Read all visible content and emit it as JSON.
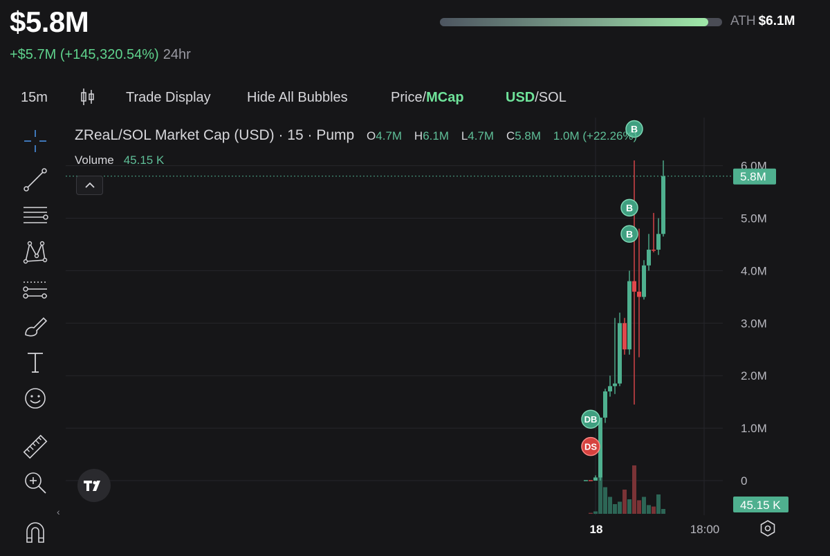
{
  "header": {
    "market_cap": "$5.8M",
    "change": "+$5.7M (+145,320.54%)",
    "change_period": "24hr",
    "ath_label": "ATH",
    "ath_value": "$6.1M",
    "ath_progress": 0.95,
    "colors": {
      "positive": "#5fd38d",
      "ath_fill": "#9fe8a8"
    }
  },
  "toolbar": {
    "interval": "15m",
    "candle_icon": "candlestick-icon",
    "trade_display": "Trade Display",
    "hide_bubbles": "Hide All Bubbles",
    "price_label": "Price/",
    "mcap_label": "MCap",
    "usd_label": "USD",
    "sol_label": "/SOL"
  },
  "sidebar": {
    "tools": [
      "crosshair-icon",
      "trendline-icon",
      "fib-lines-icon",
      "pattern-icon",
      "forecast-icon",
      "brush-icon",
      "text-icon",
      "emoji-icon",
      "ruler-icon",
      "zoom-in-icon",
      "magnet-icon"
    ]
  },
  "legend": {
    "symbol": "ZReaL/SOL Market Cap (USD) · 15 · Pump",
    "o_label": "O",
    "o": "4.7M",
    "h_label": "H",
    "h": "6.1M",
    "l_label": "L",
    "l": "4.7M",
    "c_label": "C",
    "c": "5.8M",
    "change": "1.0M (+22.26%)",
    "volume_label": "Volume",
    "volume": "45.15 K"
  },
  "chart_data": {
    "type": "candlestick",
    "title": "ZReaL/SOL Market Cap (USD) · 15 · Pump",
    "y_unit": "USD market cap",
    "ylim": [
      0,
      6400000
    ],
    "y_ticks": [
      "6.0M",
      "5.0M",
      "4.0M",
      "3.0M",
      "2.0M",
      "1.0M",
      "0"
    ],
    "y_tick_values": [
      6000000,
      5000000,
      4000000,
      3000000,
      2000000,
      1000000,
      0
    ],
    "x_ticks": [
      "18",
      "18:00"
    ],
    "current_value": 5800000,
    "current_label": "5.8M",
    "volume_label": "45.15 K",
    "colors": {
      "up": "#4fb08f",
      "down": "#e0484c",
      "up_vol": "#2d6656",
      "down_vol": "#7a3336"
    },
    "candles": [
      {
        "o": 0,
        "h": 0,
        "l": 0,
        "c": 0,
        "v": 0.0,
        "up": true
      },
      {
        "o": 0,
        "h": 0,
        "l": 0,
        "c": 0,
        "v": 0.02,
        "up": false
      },
      {
        "o": 0,
        "h": 100000,
        "l": 0,
        "c": 60000,
        "v": 0.05,
        "up": true
      },
      {
        "o": 60000,
        "h": 1200000,
        "l": 0,
        "c": 1200000,
        "v": 1.0,
        "up": true
      },
      {
        "o": 1200000,
        "h": 1750000,
        "l": 1100000,
        "c": 1700000,
        "v": 0.55,
        "up": true
      },
      {
        "o": 1700000,
        "h": 2000000,
        "l": 1600000,
        "c": 1800000,
        "v": 0.35,
        "up": true
      },
      {
        "o": 1800000,
        "h": 3100000,
        "l": 1650000,
        "c": 1850000,
        "v": 0.2,
        "up": true
      },
      {
        "o": 1850000,
        "h": 3200000,
        "l": 1800000,
        "c": 3000000,
        "v": 0.25,
        "up": true
      },
      {
        "o": 3000000,
        "h": 3100000,
        "l": 2400000,
        "c": 2500000,
        "v": 0.5,
        "up": false
      },
      {
        "o": 2500000,
        "h": 4000000,
        "l": 2400000,
        "c": 3800000,
        "v": 0.3,
        "up": true
      },
      {
        "o": 3800000,
        "h": 6100000,
        "l": 1450000,
        "c": 3600000,
        "v": 1.0,
        "up": false
      },
      {
        "o": 3600000,
        "h": 4800000,
        "l": 2350000,
        "c": 3500000,
        "v": 0.28,
        "up": false
      },
      {
        "o": 3500000,
        "h": 4200000,
        "l": 3450000,
        "c": 4100000,
        "v": 0.35,
        "up": true
      },
      {
        "o": 4100000,
        "h": 4700000,
        "l": 4000000,
        "c": 4400000,
        "v": 0.18,
        "up": true
      },
      {
        "o": 4400000,
        "h": 5100000,
        "l": 4350000,
        "c": 4400000,
        "v": 0.15,
        "up": false
      },
      {
        "o": 4400000,
        "h": 5000000,
        "l": 4300000,
        "c": 4700000,
        "v": 0.4,
        "up": true
      },
      {
        "o": 4700000,
        "h": 6100000,
        "l": 4650000,
        "c": 5800000,
        "v": 0.1,
        "up": true
      }
    ],
    "bubbles": [
      {
        "label": "B",
        "candle": 9,
        "value": 5200000,
        "kind": "buy"
      },
      {
        "label": "B",
        "candle": 9,
        "value": 4700000,
        "kind": "buy"
      },
      {
        "label": "B",
        "candle": 10,
        "value": 6700000,
        "kind": "buy"
      },
      {
        "label": "DB",
        "candle": 1,
        "value": 1170000,
        "kind": "buy"
      },
      {
        "label": "DS",
        "candle": 1,
        "value": 650000,
        "kind": "sell"
      }
    ]
  }
}
